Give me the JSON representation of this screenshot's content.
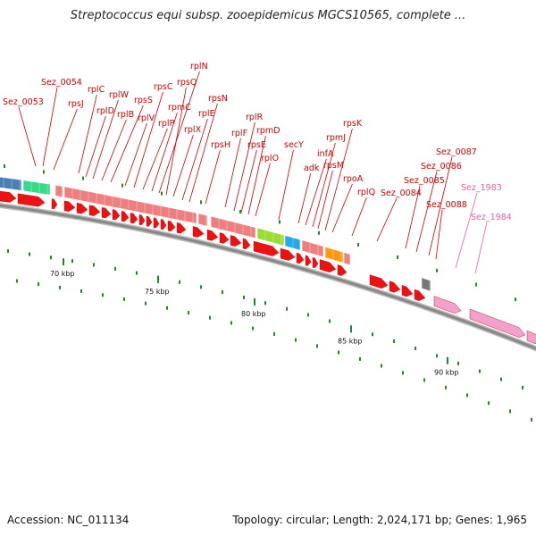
{
  "title": "Streptococcus equi subsp. zooepidemicus MGCS10565, complete ...",
  "footer": {
    "accession": "Accession: NC_011134",
    "summary": "Topology: circular; Length: 2,024,171 bp; Genes: 1,965"
  },
  "colors": {
    "gene_red": "#ee1111",
    "rna_pink": "#ef7f7f",
    "pseudo_pink": "#f4a0cc",
    "tick_green": "#228822",
    "label_red": "#cc0000",
    "label_pink": "#e060a8",
    "backbone": "#888888"
  },
  "tick_labels": [
    "70 kbp",
    "75 kbp",
    "80 kbp",
    "85 kbp",
    "90 kbp"
  ],
  "gene_labels": [
    {
      "text": "Sez_0053",
      "tone": "red"
    },
    {
      "text": "Sez_0054",
      "tone": "red"
    },
    {
      "text": "rpsJ",
      "tone": "red"
    },
    {
      "text": "rplC",
      "tone": "red"
    },
    {
      "text": "rplD",
      "tone": "red"
    },
    {
      "text": "rplW",
      "tone": "red"
    },
    {
      "text": "rplB",
      "tone": "red"
    },
    {
      "text": "rpsS",
      "tone": "red"
    },
    {
      "text": "rplV",
      "tone": "red"
    },
    {
      "text": "rpsC",
      "tone": "red"
    },
    {
      "text": "rplP",
      "tone": "red"
    },
    {
      "text": "rpmC",
      "tone": "red"
    },
    {
      "text": "rplN",
      "tone": "red"
    },
    {
      "text": "rpsQ",
      "tone": "red"
    },
    {
      "text": "rplX",
      "tone": "red"
    },
    {
      "text": "rplE",
      "tone": "red"
    },
    {
      "text": "rpsN",
      "tone": "red"
    },
    {
      "text": "rpsH",
      "tone": "red"
    },
    {
      "text": "rplF",
      "tone": "red"
    },
    {
      "text": "rplR",
      "tone": "red"
    },
    {
      "text": "rpsE",
      "tone": "red"
    },
    {
      "text": "rpmD",
      "tone": "red"
    },
    {
      "text": "rplO",
      "tone": "red"
    },
    {
      "text": "secY",
      "tone": "red"
    },
    {
      "text": "adk",
      "tone": "red"
    },
    {
      "text": "infA",
      "tone": "red"
    },
    {
      "text": "rpmJ",
      "tone": "red"
    },
    {
      "text": "rpsM",
      "tone": "red"
    },
    {
      "text": "rpsK",
      "tone": "red"
    },
    {
      "text": "rpoA",
      "tone": "red"
    },
    {
      "text": "rplQ",
      "tone": "red"
    },
    {
      "text": "Sez_0084",
      "tone": "red"
    },
    {
      "text": "Sez_0085",
      "tone": "red"
    },
    {
      "text": "Sez_0086",
      "tone": "red"
    },
    {
      "text": "Sez_0087",
      "tone": "red"
    },
    {
      "text": "Sez_0088",
      "tone": "red"
    },
    {
      "text": "Sez_1983",
      "tone": "pink"
    },
    {
      "text": "Sez_1984",
      "tone": "pink"
    }
  ]
}
